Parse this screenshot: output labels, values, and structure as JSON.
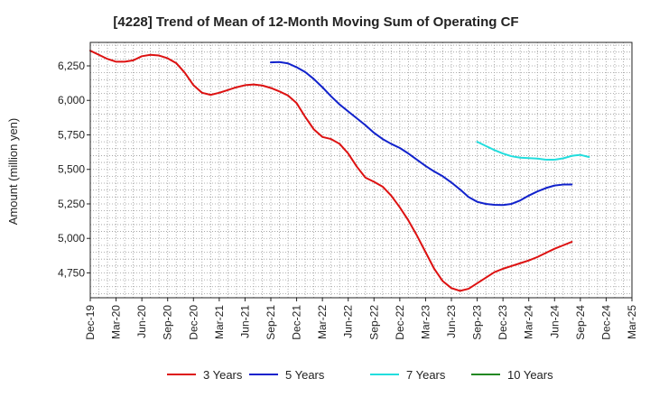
{
  "chart_data": {
    "type": "line",
    "title": "[4228]  Trend of Mean of 12-Month Moving Sum of Operating CF",
    "xlabel": "",
    "ylabel": "Amount (million yen)",
    "ylim": [
      4570,
      6420
    ],
    "y_ticks": [
      4750,
      5000,
      5250,
      5500,
      5750,
      6000,
      6250
    ],
    "y_tick_labels": [
      "4,750",
      "5,000",
      "5,250",
      "5,500",
      "5,750",
      "6,000",
      "6,250"
    ],
    "x_tick_labels": [
      "Dec-19",
      "Mar-20",
      "Jun-20",
      "Sep-20",
      "Dec-20",
      "Mar-21",
      "Jun-21",
      "Sep-21",
      "Dec-21",
      "Mar-22",
      "Jun-22",
      "Sep-22",
      "Dec-22",
      "Mar-23",
      "Jun-23",
      "Sep-23",
      "Dec-23",
      "Mar-24",
      "Jun-24",
      "Sep-24",
      "Dec-24",
      "Mar-25"
    ],
    "grid": true,
    "legend_position": "bottom",
    "series": [
      {
        "name": "3 Years",
        "color": "#dd1111",
        "start_index": 0,
        "values": [
          6360,
          6330,
          6300,
          6280,
          6280,
          6290,
          6320,
          6330,
          6325,
          6305,
          6270,
          6200,
          6110,
          6055,
          6040,
          6055,
          6075,
          6095,
          6110,
          6115,
          6108,
          6090,
          6065,
          6035,
          5980,
          5880,
          5790,
          5735,
          5720,
          5685,
          5615,
          5520,
          5440,
          5410,
          5375,
          5310,
          5225,
          5130,
          5020,
          4900,
          4780,
          4690,
          4640,
          4620,
          4635,
          4675,
          4715,
          4755,
          4780,
          4800,
          4820,
          4840,
          4865,
          4895,
          4925,
          4950,
          4975
        ]
      },
      {
        "name": "5 Years",
        "color": "#1122cc",
        "start_index": 21,
        "values": [
          6275,
          6278,
          6268,
          6240,
          6205,
          6155,
          6095,
          6030,
          5970,
          5920,
          5870,
          5820,
          5765,
          5720,
          5685,
          5655,
          5615,
          5570,
          5525,
          5485,
          5450,
          5405,
          5355,
          5300,
          5265,
          5250,
          5243,
          5242,
          5250,
          5275,
          5310,
          5340,
          5365,
          5383,
          5390,
          5390
        ]
      },
      {
        "name": "7 Years",
        "color": "#22dddd",
        "start_index": 45,
        "values": [
          5700,
          5670,
          5640,
          5615,
          5595,
          5585,
          5582,
          5578,
          5570,
          5570,
          5580,
          5598,
          5605,
          5590
        ]
      },
      {
        "name": "10 Years",
        "color": "#228822",
        "start_index": 0,
        "values": []
      }
    ]
  }
}
